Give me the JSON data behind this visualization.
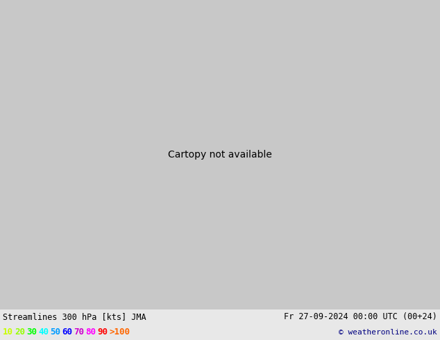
{
  "title_left": "Streamlines 300 hPa [kts] JMA",
  "title_right": "Fr 27-09-2024 00:00 UTC (00+24)",
  "copyright": "© weatheronline.co.uk",
  "legend_values": [
    "10",
    "20",
    "30",
    "40",
    "50",
    "60",
    "70",
    "80",
    "90",
    ">100"
  ],
  "legend_colors": [
    "#c8ff00",
    "#96ff00",
    "#00ff00",
    "#00ffff",
    "#009bff",
    "#0000ff",
    "#cc00cc",
    "#ff00ff",
    "#ff0000",
    "#ff6600"
  ],
  "ocean_color": "#c8c8c8",
  "land_color": "#90ee90",
  "mountain_color": "#a0c8a0",
  "border_color": "#555555",
  "fig_width": 6.34,
  "fig_height": 4.9,
  "dpi": 100,
  "map_extent": [
    -175,
    -50,
    15,
    80
  ],
  "title_fontsize": 8.5,
  "legend_fontsize": 9,
  "copyright_fontsize": 8
}
